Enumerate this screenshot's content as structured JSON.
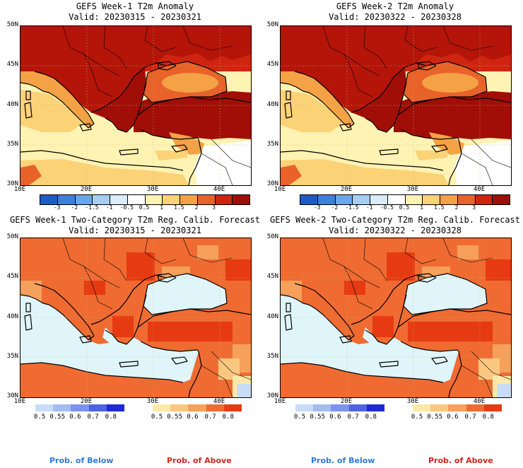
{
  "panels": [
    {
      "title": "GEFS Week-1 T2m Anomaly",
      "valid": "Valid: 20230315 - 20230321",
      "kind": "anomaly"
    },
    {
      "title": "GEFS Week-2 T2m Anomaly",
      "valid": "Valid: 20230322 - 20230328",
      "kind": "anomaly"
    },
    {
      "title": "GEFS Week-1 Two-Category T2m Reg. Calib. Forecast",
      "valid": "Valid: 20230315 - 20230321",
      "kind": "prob"
    },
    {
      "title": "GEFS Week-2 Two-Category T2m Reg. Calib. Forecast",
      "valid": "Valid: 20230322 - 20230328",
      "kind": "prob"
    }
  ],
  "axes": {
    "lat_labels": [
      "50N",
      "45N",
      "40N",
      "35N",
      "30N"
    ],
    "lon_labels": [
      "10E",
      "20E",
      "30E",
      "40E"
    ]
  },
  "anomaly_colorbar": {
    "ticks": [
      "-3",
      "-2",
      "-1.5",
      "-1",
      "-0.5",
      "0.5",
      "1",
      "1.5",
      "2",
      "3"
    ],
    "colors": [
      "#1f5bc4",
      "#3c80dc",
      "#6aa6ea",
      "#a6cdf2",
      "#d9ecf7",
      "#ffffff",
      "#fff3b3",
      "#fcd277",
      "#f5a145",
      "#e8622a",
      "#cf2510",
      "#a10e07"
    ]
  },
  "below_colorbar": {
    "ticks": [
      "0.5",
      "0.55",
      "0.6",
      "0.7",
      "0.8"
    ],
    "colors": [
      "#c9dcf7",
      "#a3bcf1",
      "#7b93ec",
      "#4e62e4",
      "#1e28d6"
    ]
  },
  "above_colorbar": {
    "ticks": [
      "0.5",
      "0.55",
      "0.6",
      "0.7",
      "0.8"
    ],
    "colors": [
      "#fde9a6",
      "#fbc780",
      "#f6a05b",
      "#ef6b32",
      "#e63a12"
    ]
  },
  "footer": {
    "below_label": "Prob. of Below",
    "above_label": "Prob. of Above",
    "below_color": "#2d7bd8",
    "above_color": "#d4231c"
  }
}
